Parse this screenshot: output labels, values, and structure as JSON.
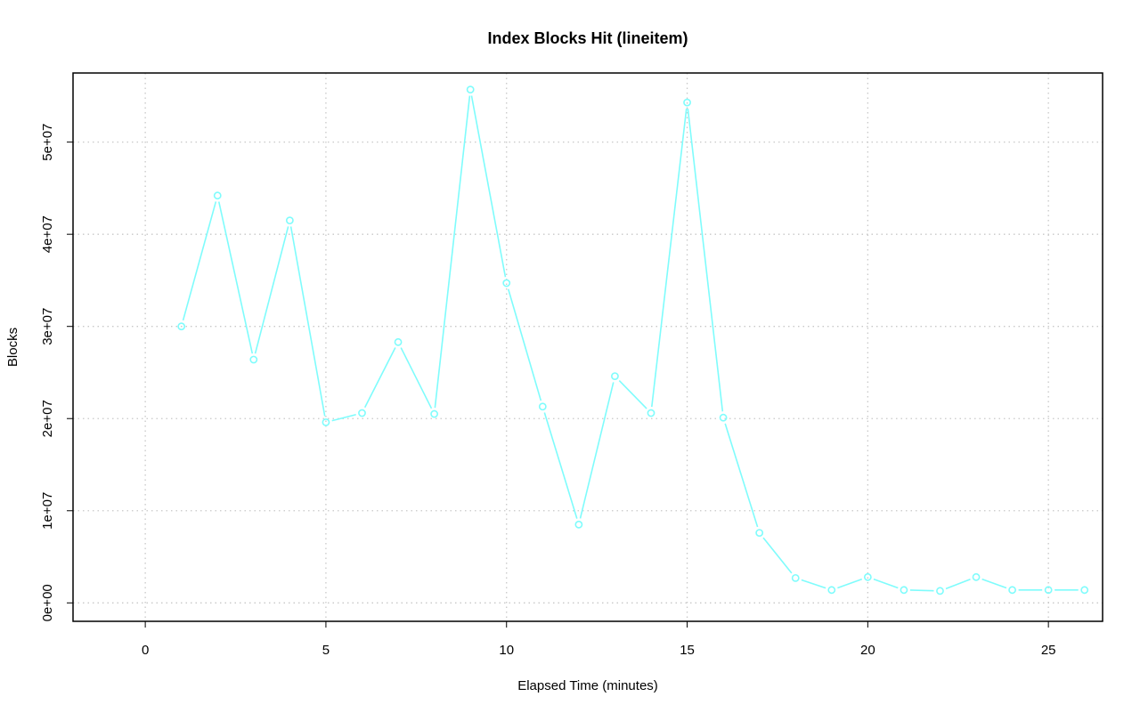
{
  "chart_data": {
    "type": "line",
    "title": "Index Blocks Hit (lineitem)",
    "xlabel": "Elapsed Time (minutes)",
    "ylabel": "Blocks",
    "xlim": [
      -2,
      26.5
    ],
    "ylim": [
      -2000000,
      57500000
    ],
    "x_ticks": [
      0,
      5,
      10,
      15,
      20,
      25
    ],
    "x_tick_labels": [
      "0",
      "5",
      "10",
      "15",
      "20",
      "25"
    ],
    "y_ticks": [
      0,
      10000000,
      20000000,
      30000000,
      40000000,
      50000000
    ],
    "y_tick_labels": [
      "0e+00",
      "1e+07",
      "2e+07",
      "3e+07",
      "4e+07",
      "5e+07"
    ],
    "grid": true,
    "series": [
      {
        "color": "#7ffcfc",
        "marker": "open-circle",
        "x": [
          1,
          2,
          3,
          4,
          5,
          6,
          7,
          8,
          9,
          10,
          11,
          12,
          13,
          14,
          15,
          16,
          17,
          18,
          19,
          20,
          21,
          22,
          23,
          24,
          25,
          26
        ],
        "y": [
          30000000,
          44200000,
          26400000,
          41500000,
          19600000,
          20600000,
          28300000,
          20500000,
          55700000,
          34700000,
          21300000,
          8500000,
          24600000,
          20600000,
          54300000,
          20100000,
          7600000,
          2700000,
          1400000,
          2800000,
          1400000,
          1300000,
          2800000,
          1400000,
          1400000,
          1400000
        ]
      }
    ]
  }
}
